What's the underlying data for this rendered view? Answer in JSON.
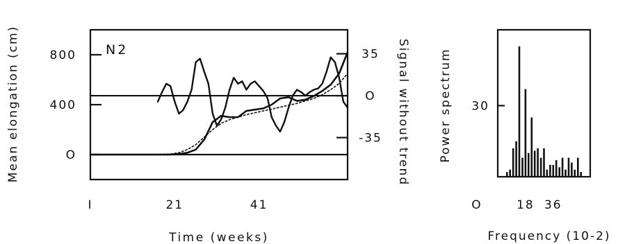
{
  "chart_data": [
    {
      "type": "line",
      "panel_label": "N2",
      "xlabel": "Time (weeks)",
      "ylabel_left": "Mean elongation (cm)",
      "ylabel_right": "Signal without trend",
      "xlim": [
        1,
        62
      ],
      "ylim_left": [
        -200,
        1000
      ],
      "ylim_right": [
        -70,
        55
      ],
      "x_ticks": [
        {
          "value": 1,
          "label": "I"
        },
        {
          "value": 21,
          "label": "21"
        },
        {
          "value": 41,
          "label": "41"
        }
      ],
      "y_ticks_left": [
        {
          "value": 0,
          "label": "O"
        },
        {
          "value": 400,
          "label": "400"
        },
        {
          "value": 800,
          "label": "800"
        }
      ],
      "y_ticks_right": [
        {
          "value": 35,
          "label": "35"
        },
        {
          "value": 0,
          "label": "O"
        },
        {
          "value": -35,
          "label": "-35"
        }
      ],
      "reference_lines": [
        {
          "axis": "left",
          "y": 0
        },
        {
          "axis": "right",
          "y": 0
        }
      ],
      "series": [
        {
          "axis": "left",
          "style": "solid",
          "x": [
            1,
            6,
            11,
            16,
            20,
            22,
            24,
            26,
            28,
            30,
            32,
            34,
            36,
            38,
            40,
            42,
            44,
            46,
            48,
            50,
            52,
            54,
            56,
            58,
            60,
            62
          ],
          "y": [
            0,
            0,
            0,
            0,
            0,
            5,
            15,
            40,
            120,
            260,
            310,
            300,
            300,
            350,
            360,
            370,
            400,
            450,
            460,
            430,
            440,
            470,
            510,
            560,
            650,
            820
          ]
        },
        {
          "axis": "left",
          "style": "dotted",
          "x": [
            1,
            6,
            11,
            16,
            20,
            22,
            24,
            26,
            28,
            30,
            32,
            34,
            36,
            38,
            40,
            42,
            44,
            46,
            48,
            50,
            52,
            54,
            56,
            58,
            60,
            62
          ],
          "y": [
            0,
            0,
            0,
            0,
            5,
            15,
            40,
            80,
            140,
            200,
            250,
            280,
            300,
            320,
            335,
            350,
            365,
            380,
            395,
            410,
            430,
            450,
            480,
            520,
            570,
            650
          ]
        },
        {
          "axis": "right",
          "style": "solid",
          "x": [
            17,
            18,
            19,
            20,
            21,
            22,
            23,
            24,
            25,
            26,
            27,
            28,
            29,
            30,
            31,
            32,
            33,
            34,
            35,
            36,
            37,
            38,
            39,
            40,
            41,
            42,
            43,
            44,
            45,
            46,
            47,
            48,
            49,
            50,
            51,
            52,
            53,
            54,
            55,
            56,
            57,
            58,
            59,
            60,
            61,
            62
          ],
          "y": [
            -5,
            3,
            10,
            8,
            -5,
            -15,
            -12,
            -5,
            5,
            28,
            31,
            20,
            10,
            -15,
            -25,
            -20,
            -10,
            5,
            15,
            10,
            12,
            5,
            10,
            12,
            8,
            4,
            -2,
            -18,
            -25,
            -30,
            -22,
            -10,
            0,
            5,
            3,
            0,
            3,
            5,
            6,
            10,
            20,
            32,
            28,
            15,
            -5,
            -10
          ]
        }
      ]
    },
    {
      "type": "bar",
      "ylabel": "Power spectrum",
      "xlabel": "Frequency (10-2)",
      "x_ticks": [
        {
          "value": 0,
          "label": "O"
        },
        {
          "value": 18,
          "label": "18"
        },
        {
          "value": 36,
          "label": "36"
        }
      ],
      "y_ticks": [
        {
          "value": 30,
          "label": "30"
        }
      ],
      "xlim": [
        0,
        60
      ],
      "ylim": [
        0,
        62
      ],
      "x": [
        6,
        8,
        10,
        12,
        14,
        16,
        18,
        20,
        22,
        24,
        26,
        28,
        30,
        32,
        34,
        36,
        38,
        40,
        42,
        44,
        46,
        48,
        50,
        52,
        54
      ],
      "values": [
        2,
        3,
        12,
        15,
        55,
        8,
        37,
        10,
        25,
        11,
        12,
        8,
        12,
        3,
        5,
        5,
        7,
        4,
        8,
        3,
        8,
        6,
        3,
        8,
        2
      ]
    }
  ]
}
